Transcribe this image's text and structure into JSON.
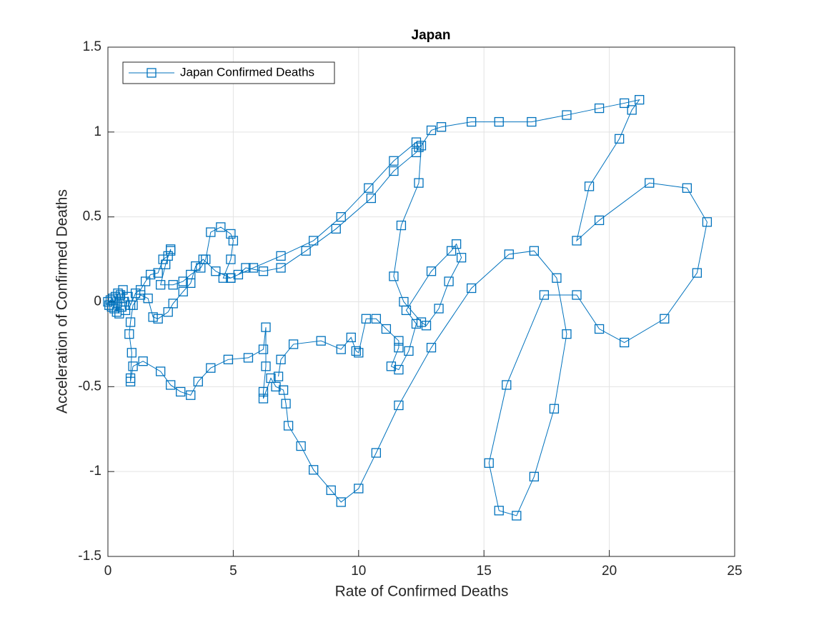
{
  "chart_data": {
    "type": "line",
    "title": "Japan",
    "xlabel": "Rate of Confirmed Deaths",
    "ylabel": "Acceleration of Confirmed Deaths",
    "xlim": [
      0,
      25
    ],
    "xticks": [
      0,
      5,
      10,
      15,
      20,
      25
    ],
    "ylim": [
      -1.5,
      1.5
    ],
    "yticks": [
      -1.5,
      -1,
      -0.5,
      0,
      0.5,
      1,
      1.5
    ],
    "grid": true,
    "legend": "upper-left",
    "marker": "square",
    "x": [
      0,
      0.05,
      0.1,
      0.15,
      0.2,
      0.25,
      0.3,
      0.35,
      0.4,
      0.45,
      0.5,
      0.55,
      0.6,
      0.65,
      0.7,
      0.8,
      0.9,
      1.1,
      1.3,
      1.5,
      1.7,
      2.0,
      2.2,
      2.4,
      2.5,
      2.5,
      2.3,
      2.1,
      2.6,
      3.0,
      3.3,
      3.7,
      3.9,
      4.1,
      4.5,
      4.9,
      5.0,
      4.9,
      4.6,
      4.9,
      5.2,
      5.5,
      6.2,
      6.9,
      7.9,
      9.1,
      10.5,
      11.4,
      12.3,
      12.4,
      12.3,
      11.4,
      10.4,
      9.3,
      8.2,
      6.9,
      5.8,
      4.9,
      4.3,
      3.8,
      3.5,
      3.3,
      3.0,
      2.6,
      2.4,
      2.0,
      1.8,
      1.6,
      1.3,
      1.0,
      0.9,
      0.85,
      0.95,
      0.9,
      0.9,
      1.0,
      1.4,
      2.1,
      2.5,
      2.9,
      3.3,
      3.6,
      4.1,
      4.8,
      5.6,
      6.2,
      6.3,
      6.3,
      6.2,
      6.2,
      6.5,
      6.7,
      7.0,
      7.1,
      7.2,
      7.7,
      8.2,
      8.9,
      9.3,
      10.0,
      10.7,
      11.6,
      12.9,
      14.5,
      16.0,
      17.0,
      17.9,
      18.3,
      17.8,
      17.0,
      16.3,
      15.6,
      15.2,
      15.9,
      17.4,
      18.7,
      19.6,
      20.6,
      22.2,
      23.5,
      23.9,
      23.1,
      21.6,
      19.6,
      18.7,
      19.2,
      20.4,
      20.9,
      21.2,
      20.6,
      19.6,
      18.3,
      16.9,
      15.6,
      14.5,
      13.3,
      12.9,
      12.5,
      12.4,
      11.7,
      11.4,
      11.8,
      12.5,
      12.7,
      13.2,
      13.6,
      14.1,
      13.9,
      13.7,
      12.9,
      11.9,
      12.3,
      12.0,
      11.6,
      11.3,
      11.6,
      11.6,
      11.1,
      10.7,
      10.3,
      10.0,
      9.9,
      9.7,
      9.3,
      8.5,
      7.4,
      6.9,
      6.8
    ],
    "series": [
      {
        "name": "Japan Confirmed Deaths",
        "color": "#0072bd",
        "values": [
          0,
          -0.02,
          0.01,
          -0.03,
          0.02,
          -0.04,
          0.03,
          -0.06,
          0.05,
          -0.07,
          0.04,
          -0.03,
          0.07,
          0,
          -0.05,
          0.03,
          -0.02,
          0.05,
          0.07,
          0.12,
          0.16,
          0.17,
          0.25,
          0.27,
          0.3,
          0.31,
          0.22,
          0.1,
          0.1,
          0.12,
          0.16,
          0.2,
          0.25,
          0.41,
          0.44,
          0.4,
          0.36,
          0.25,
          0.14,
          0.14,
          0.16,
          0.2,
          0.18,
          0.2,
          0.3,
          0.43,
          0.61,
          0.77,
          0.88,
          0.91,
          0.94,
          0.83,
          0.67,
          0.5,
          0.36,
          0.27,
          0.2,
          0.14,
          0.18,
          0.25,
          0.21,
          0.11,
          0.06,
          -0.01,
          -0.06,
          -0.1,
          -0.09,
          0.02,
          0.04,
          -0.02,
          -0.12,
          -0.19,
          -0.3,
          -0.45,
          -0.47,
          -0.38,
          -0.35,
          -0.41,
          -0.49,
          -0.53,
          -0.55,
          -0.47,
          -0.39,
          -0.34,
          -0.33,
          -0.28,
          -0.15,
          -0.38,
          -0.53,
          -0.57,
          -0.45,
          -0.5,
          -0.52,
          -0.6,
          -0.73,
          -0.85,
          -0.99,
          -1.11,
          -1.18,
          -1.1,
          -0.89,
          -0.61,
          -0.27,
          0.08,
          0.28,
          0.3,
          0.14,
          -0.19,
          -0.63,
          -1.03,
          -1.26,
          -1.23,
          -0.95,
          -0.49,
          0.04,
          0.04,
          -0.16,
          -0.24,
          -0.1,
          0.17,
          0.47,
          0.67,
          0.7,
          0.48,
          0.36,
          0.68,
          0.96,
          1.13,
          1.19,
          1.17,
          1.14,
          1.1,
          1.06,
          1.06,
          1.06,
          1.03,
          1.01,
          0.92,
          0.7,
          0.45,
          0.15,
          0,
          -0.12,
          -0.14,
          -0.04,
          0.12,
          0.26,
          0.34,
          0.3,
          0.18,
          -0.05,
          -0.13,
          -0.29,
          -0.4,
          -0.38,
          -0.27,
          -0.23,
          -0.16,
          -0.1,
          -0.1,
          -0.3,
          -0.29,
          -0.21,
          -0.28,
          -0.23,
          -0.25,
          -0.34,
          -0.44
        ]
      }
    ]
  }
}
